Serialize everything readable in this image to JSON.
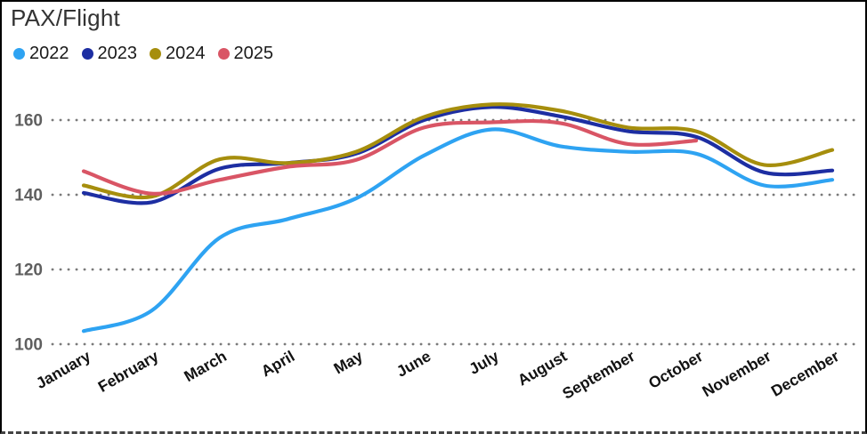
{
  "chart_data": {
    "type": "line",
    "title": "PAX/Flight",
    "categories": [
      "January",
      "February",
      "March",
      "April",
      "May",
      "June",
      "July",
      "August",
      "September",
      "October",
      "November",
      "December"
    ],
    "yticks": [
      100,
      120,
      140,
      160
    ],
    "ylim": [
      96,
      168
    ],
    "grid": "dotted-horizontal",
    "legend_position": "top-left",
    "gridline_color": "#7a7a7a",
    "series": [
      {
        "name": "2022",
        "color": "#2EA3F2",
        "values": [
          103.5,
          109,
          128.5,
          133.5,
          139,
          150.5,
          157.5,
          153,
          151.5,
          151,
          142.5,
          144
        ]
      },
      {
        "name": "2023",
        "color": "#1D2EA2",
        "values": [
          140.5,
          138,
          147,
          148.5,
          151,
          160,
          163.5,
          161,
          157,
          155.5,
          146,
          146.5
        ]
      },
      {
        "name": "2024",
        "color": "#A68E0D",
        "values": [
          142.5,
          139.5,
          149.5,
          148.5,
          151.5,
          160.8,
          164.2,
          162.5,
          158,
          157,
          148,
          152
        ]
      },
      {
        "name": "2025",
        "color": "#D95565",
        "values": [
          146.3,
          140.3,
          144,
          147.5,
          149.3,
          158,
          159.4,
          159.2,
          153.6,
          154.5
        ]
      }
    ]
  }
}
